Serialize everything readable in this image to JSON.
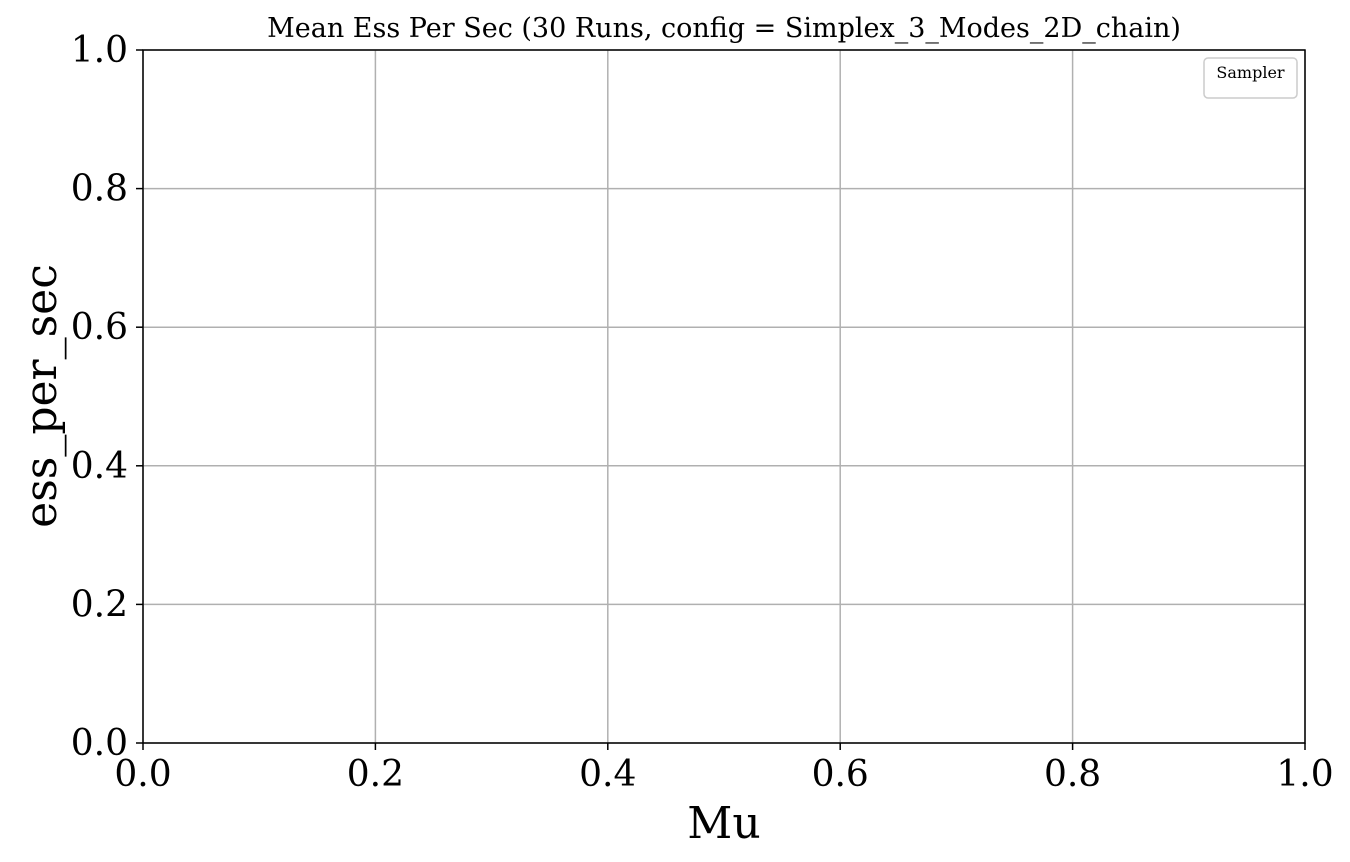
{
  "chart_data": {
    "type": "line",
    "title": "Mean Ess Per Sec (30 Runs, config = Simplex_3_Modes_2D_chain)",
    "xlabel": "Mu",
    "ylabel": "ess_per_sec",
    "xlim": [
      0.0,
      1.0
    ],
    "ylim": [
      0.0,
      1.0
    ],
    "x_ticks": [
      0.0,
      0.2,
      0.4,
      0.6,
      0.8,
      1.0
    ],
    "y_ticks": [
      0.0,
      0.2,
      0.4,
      0.6,
      0.8,
      1.0
    ],
    "x_tick_labels": [
      "0.0",
      "0.2",
      "0.4",
      "0.6",
      "0.8",
      "1.0"
    ],
    "y_tick_labels": [
      "0.0",
      "0.2",
      "0.4",
      "0.6",
      "0.8",
      "1.0"
    ],
    "grid": true,
    "legend": {
      "title": "Sampler",
      "placement": "top-right",
      "entries": []
    },
    "series": [],
    "colors": {
      "grid": "#b0b0b0",
      "axes": "#000000",
      "legend_border": "#cccccc"
    }
  }
}
